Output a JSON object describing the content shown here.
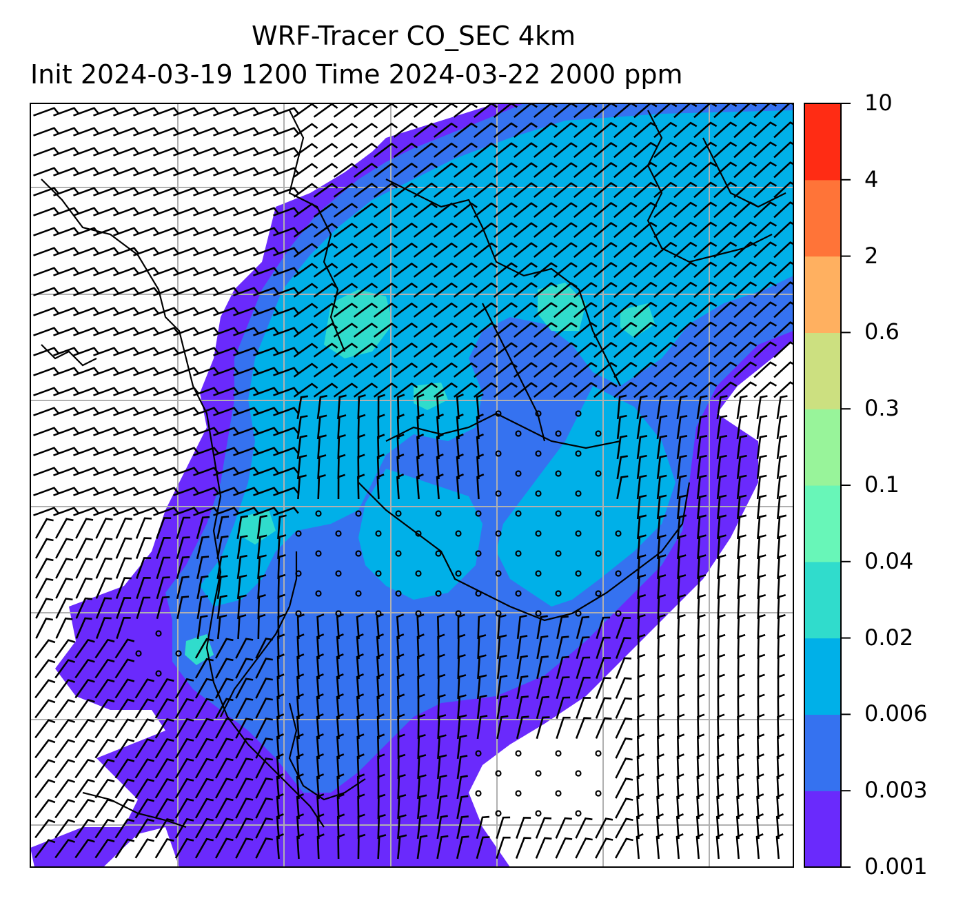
{
  "title": {
    "line1": "WRF-Tracer CO_SEC 4km",
    "line2": "Init 2024-03-19 1200 Time 2024-03-22 2000 ppm"
  },
  "colorbar": {
    "levels": [
      "0.001",
      "0.003",
      "0.006",
      "0.02",
      "0.04",
      "0.1",
      "0.3",
      "0.6",
      "2",
      "4",
      "10"
    ],
    "colors": [
      "#6a2afc",
      "#3572f0",
      "#00b0e8",
      "#30dccc",
      "#68f6b8",
      "#98f49a",
      "#cce080",
      "#ffb060",
      "#ff7438",
      "#ff2c14"
    ]
  },
  "map": {
    "background": "#ffffff",
    "gridlines": true,
    "coastline_color": "#000000",
    "wind_barbs": true
  }
}
